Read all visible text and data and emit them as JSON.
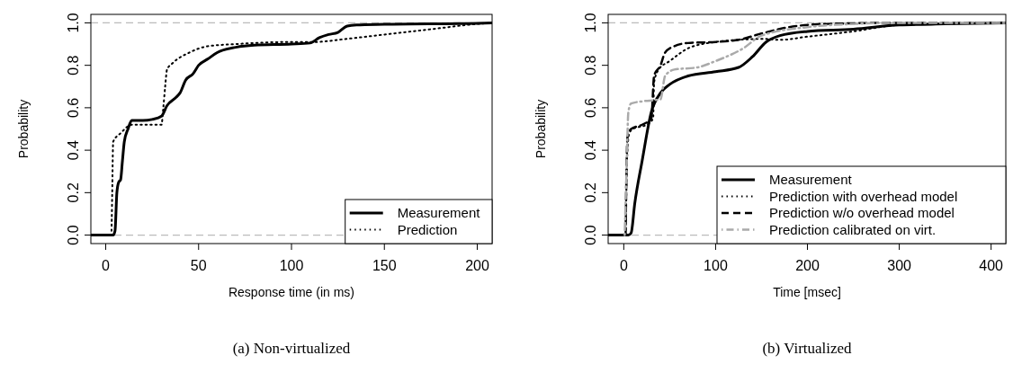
{
  "chart_data": [
    {
      "type": "line",
      "xlabel": "Response time (in ms)",
      "ylabel": "Probability",
      "xlim": [
        -8,
        208
      ],
      "ylim": [
        -0.04,
        1.04
      ],
      "xticks": [
        0,
        50,
        100,
        150,
        200
      ],
      "yticks": [
        {
          "value": 0,
          "label": "0.0"
        },
        {
          "value": 0.2,
          "label": "0.2"
        },
        {
          "value": 0.4,
          "label": "0.4"
        },
        {
          "value": 0.6,
          "label": "0.6"
        },
        {
          "value": 0.8,
          "label": "0.8"
        },
        {
          "value": 1,
          "label": "1.0"
        }
      ],
      "legend": "bottom right",
      "grid": false,
      "ref_lines": [
        {
          "axis": "y",
          "value": 0,
          "color": "#bbbbbb",
          "line_style": "dashed"
        },
        {
          "axis": "y",
          "value": 1,
          "color": "#bbbbbb",
          "line_style": "dashed"
        }
      ],
      "annotations": [
        "(a) Non-virtualized"
      ],
      "series": [
        {
          "name": "Measurement",
          "color": "#000000",
          "line_style": "solid",
          "x": [
            -8,
            4,
            5,
            6,
            7,
            8,
            9,
            10,
            12,
            14,
            20,
            25,
            30,
            33,
            38,
            40,
            43,
            47,
            50,
            55,
            60,
            70,
            80,
            100,
            110,
            115,
            120,
            125,
            130,
            135,
            150,
            200,
            208
          ],
          "values": [
            0,
            0,
            0.02,
            0.2,
            0.25,
            0.26,
            0.35,
            0.44,
            0.5,
            0.54,
            0.54,
            0.545,
            0.56,
            0.61,
            0.65,
            0.67,
            0.73,
            0.76,
            0.8,
            0.83,
            0.86,
            0.885,
            0.895,
            0.9,
            0.905,
            0.93,
            0.945,
            0.955,
            0.985,
            0.99,
            0.993,
            0.998,
            1
          ]
        },
        {
          "name": "Prediction",
          "color": "#000000",
          "line_style": "dotted",
          "x": [
            -8,
            3,
            3.5,
            4,
            8,
            14,
            20,
            30,
            31,
            32,
            33,
            36,
            45,
            55,
            70,
            100,
            112,
            130,
            150,
            175,
            200,
            208
          ],
          "values": [
            0,
            0,
            0.2,
            0.44,
            0.48,
            0.52,
            0.52,
            0.52,
            0.6,
            0.7,
            0.78,
            0.81,
            0.86,
            0.89,
            0.9,
            0.91,
            0.91,
            0.925,
            0.945,
            0.97,
            0.995,
            1
          ]
        }
      ]
    },
    {
      "type": "line",
      "xlabel": "Time [msec]",
      "ylabel": "Probability",
      "xlim": [
        -17,
        416
      ],
      "ylim": [
        -0.04,
        1.04
      ],
      "xticks": [
        0,
        100,
        200,
        300,
        400
      ],
      "yticks": [
        {
          "value": 0,
          "label": "0.0"
        },
        {
          "value": 0.2,
          "label": "0.2"
        },
        {
          "value": 0.4,
          "label": "0.4"
        },
        {
          "value": 0.6,
          "label": "0.6"
        },
        {
          "value": 0.8,
          "label": "0.8"
        },
        {
          "value": 1,
          "label": "1.0"
        }
      ],
      "legend": "bottom right",
      "grid": false,
      "ref_lines": [
        {
          "axis": "y",
          "value": 0,
          "color": "#bbbbbb",
          "line_style": "dashed"
        },
        {
          "axis": "y",
          "value": 1,
          "color": "#bbbbbb",
          "line_style": "dashed"
        }
      ],
      "annotations": [
        "(b) Virtualized"
      ],
      "series": [
        {
          "name": "Measurement",
          "color": "#000000",
          "line_style": "solid",
          "x": [
            -17,
            5,
            8,
            12,
            20,
            30,
            40,
            50,
            70,
            100,
            125,
            140,
            155,
            170,
            200,
            250,
            300,
            350,
            416
          ],
          "values": [
            0,
            0,
            0.01,
            0.15,
            0.35,
            0.58,
            0.67,
            0.71,
            0.75,
            0.77,
            0.79,
            0.84,
            0.91,
            0.94,
            0.96,
            0.97,
            0.99,
            0.995,
            1
          ]
        },
        {
          "name": "Prediction with overhead model",
          "color": "#000000",
          "line_style": "dotted",
          "x": [
            2,
            4,
            6,
            10,
            25,
            32,
            33,
            38,
            50,
            70,
            100,
            125,
            150,
            170,
            200,
            250,
            300,
            416
          ],
          "values": [
            0,
            0.4,
            0.48,
            0.5,
            0.52,
            0.55,
            0.72,
            0.78,
            0.82,
            0.88,
            0.91,
            0.92,
            0.925,
            0.92,
            0.935,
            0.96,
            0.99,
            1
          ]
        },
        {
          "name": "Prediction w/o overhead model",
          "color": "#000000",
          "line_style": "dashed",
          "x": [
            2,
            3,
            4,
            8,
            20,
            30,
            33,
            40,
            45,
            55,
            70,
            100,
            125,
            150,
            180,
            220,
            300,
            416
          ],
          "values": [
            0,
            0.3,
            0.46,
            0.5,
            0.52,
            0.55,
            0.75,
            0.8,
            0.86,
            0.89,
            0.905,
            0.91,
            0.92,
            0.95,
            0.98,
            0.995,
            1,
            1
          ]
        },
        {
          "name": "Prediction calibrated on virt.",
          "color": "#aaaaaa",
          "line_style": "dashdot",
          "x": [
            1,
            3,
            5,
            8,
            20,
            40,
            45,
            55,
            80,
            100,
            130,
            150,
            200,
            250,
            300,
            416
          ],
          "values": [
            0,
            0.3,
            0.58,
            0.62,
            0.63,
            0.64,
            0.75,
            0.78,
            0.79,
            0.82,
            0.88,
            0.94,
            0.98,
            0.995,
            1,
            1
          ]
        }
      ]
    }
  ]
}
